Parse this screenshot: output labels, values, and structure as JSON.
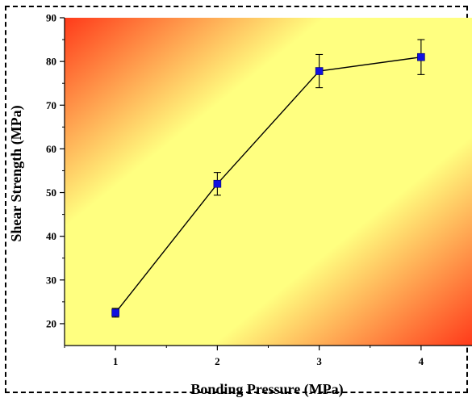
{
  "chart_data": {
    "type": "line",
    "title": "",
    "xlabel": "Bonding Pressure (MPa)",
    "ylabel": "Shear Strength (MPa)",
    "xlim": [
      0.5,
      4.5
    ],
    "ylim": [
      15,
      90
    ],
    "x_ticks": [
      1,
      2,
      3,
      4
    ],
    "y_ticks": [
      20,
      30,
      40,
      50,
      60,
      70,
      80,
      90
    ],
    "grid": false,
    "legend": "none",
    "series": [
      {
        "x": [
          1,
          2,
          3,
          4
        ],
        "y": [
          22.5,
          52,
          77.8,
          81
        ],
        "error": [
          1.0,
          2.6,
          3.8,
          4.0
        ],
        "marker": "square",
        "marker_color": "#1010e0",
        "line_color": "#000000"
      }
    ],
    "background": {
      "style": "diagonal-gradient",
      "corner_color": "#ff3a1a",
      "mid_color": "#ffff80"
    }
  }
}
